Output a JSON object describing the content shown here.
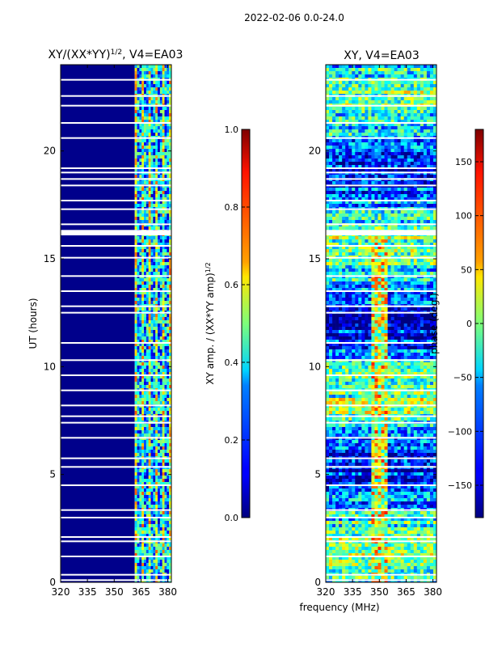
{
  "figure_title": "2022-02-06 0.0-24.0",
  "chart_data": [
    {
      "type": "heatmap",
      "title_main": "XY/(XX*YY)",
      "title_exp": "1/2",
      "title_tail": ", V4=EA03",
      "xlabel": "",
      "ylabel": "UT (hours)",
      "xlim": [
        320,
        382
      ],
      "ylim": [
        0,
        24
      ],
      "xticks": [
        320,
        335,
        350,
        365,
        380
      ],
      "yticks": [
        0,
        5,
        10,
        15,
        20
      ],
      "data_cols": [
        361.5,
        382
      ],
      "colorbar": {
        "label_main": "XY amp. / (XX*YY amp)",
        "label_exp": "1/2",
        "range": [
          0.0,
          1.0
        ],
        "ticks": [
          "0.0",
          "0.2",
          "0.4",
          "0.6",
          "0.8",
          "1.0"
        ],
        "colormap": "jet"
      }
    },
    {
      "type": "heatmap",
      "title": "XY, V4=EA03",
      "xlabel": "frequency (MHz)",
      "ylabel": "",
      "xlim": [
        320,
        382
      ],
      "ylim": [
        0,
        24
      ],
      "xticks": [
        320,
        335,
        350,
        365,
        380
      ],
      "yticks": [
        0,
        5,
        10,
        15,
        20
      ],
      "colorbar": {
        "label": "phase (deg.)",
        "range": [
          -180,
          180
        ],
        "ticks": [
          "150",
          "100",
          "50",
          "0",
          "−50",
          "−100",
          "−150"
        ],
        "colormap": "jet"
      }
    }
  ],
  "flagged_hours": [
    0.1,
    0.35,
    1.2,
    1.9,
    2.1,
    3.0,
    3.35,
    4.5,
    5.35,
    5.75,
    6.7,
    7.4,
    7.7,
    8.2,
    8.9,
    9.6,
    10.3,
    11.1,
    12.5,
    12.8,
    13.5,
    14.2,
    15.05,
    15.6,
    16.2,
    16.3,
    16.6,
    17.3,
    17.7,
    18.4,
    18.7,
    19.0,
    19.2,
    20.6,
    21.3,
    22.1,
    22.55,
    23.3
  ]
}
